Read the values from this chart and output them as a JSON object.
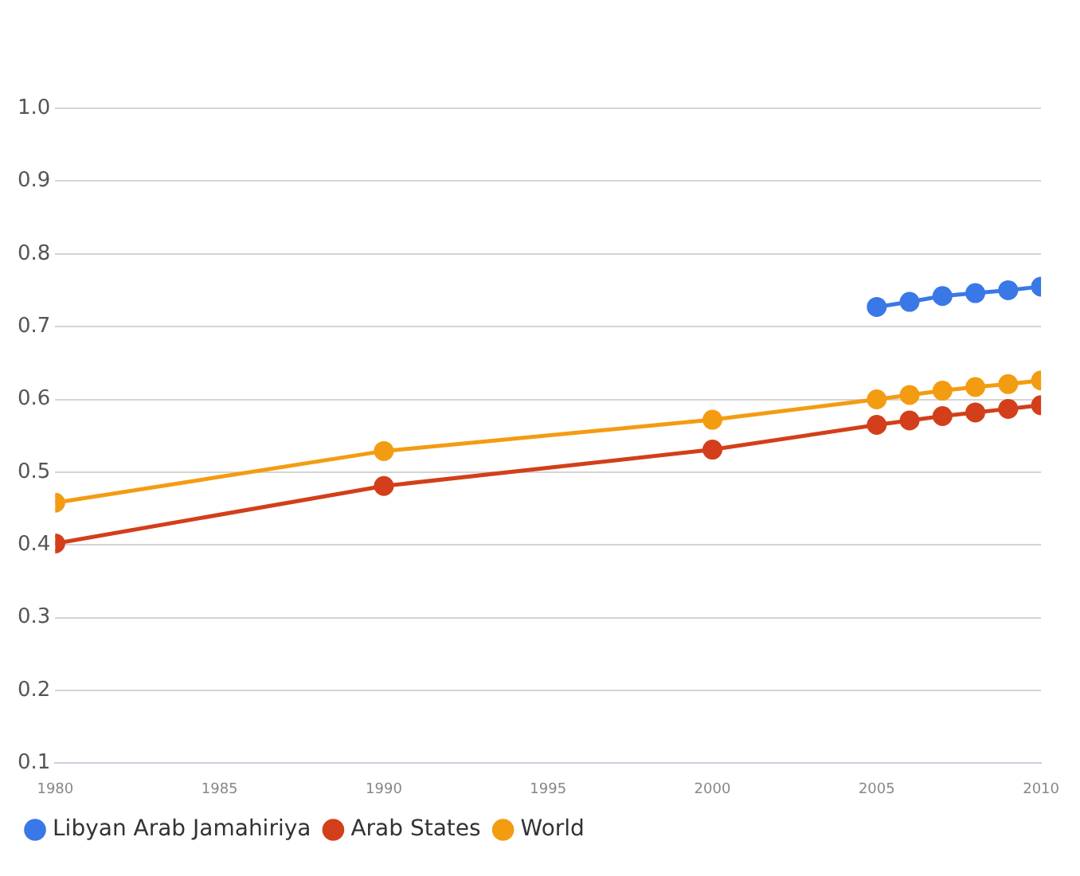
{
  "chart_data": {
    "type": "line",
    "x": [
      1980,
      1990,
      2000,
      2005,
      2006,
      2007,
      2008,
      2009,
      2010
    ],
    "series": [
      {
        "name": "Libyan Arab Jamahiriya",
        "color": "#3b78e7",
        "values": [
          null,
          null,
          null,
          0.727,
          0.734,
          0.742,
          0.746,
          0.75,
          0.755
        ]
      },
      {
        "name": "Arab States",
        "color": "#d23f1a",
        "values": [
          0.402,
          0.481,
          0.531,
          0.565,
          0.571,
          0.577,
          0.582,
          0.587,
          0.592
        ]
      },
      {
        "name": "World",
        "color": "#f39c12",
        "values": [
          0.458,
          0.529,
          0.572,
          0.6,
          0.606,
          0.612,
          0.617,
          0.621,
          0.626
        ]
      }
    ],
    "xlim": [
      1980,
      2010
    ],
    "xticks": [
      1980,
      1985,
      1990,
      1995,
      2000,
      2005,
      2010
    ],
    "ylim": [
      0.1,
      1.0
    ],
    "yticks": [
      {
        "value": 0.1,
        "label": "0.1"
      },
      {
        "value": 0.2,
        "label": "0.2"
      },
      {
        "value": 0.3,
        "label": "0.3"
      },
      {
        "value": 0.4,
        "label": "0.4"
      },
      {
        "value": 0.5,
        "label": "0.5"
      },
      {
        "value": 0.6,
        "label": "0.6"
      },
      {
        "value": 0.7,
        "label": "0.7"
      },
      {
        "value": 0.8,
        "label": "0.8"
      },
      {
        "value": 0.9,
        "label": "0.9"
      },
      {
        "value": 1.0,
        "label": "1.0"
      }
    ],
    "grid": "y",
    "legend": "bottom left",
    "marker": "circle",
    "line_style": "solid"
  }
}
